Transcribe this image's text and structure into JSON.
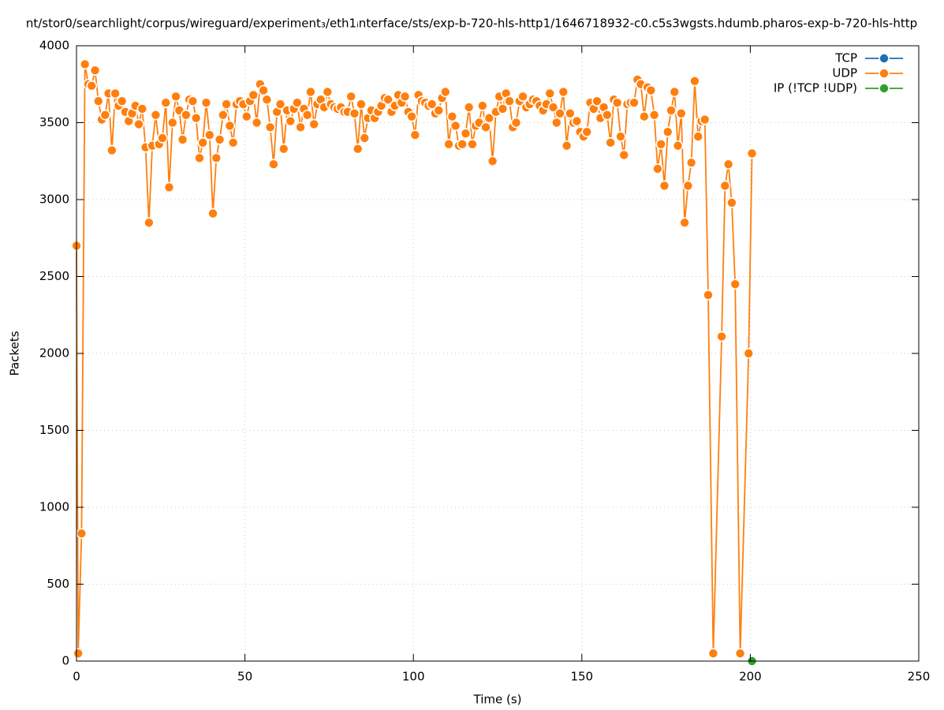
{
  "chart_data": {
    "type": "line",
    "title": "nt/stor0/searchlight/corpus/wireguard/experiment₃/eth1ᵢnterface/sts/exp-b-720-hls-http1/1646718932-c0.c5s3wgsts.hdumb.pharos-exp-b-720-hls-http",
    "xlabel": "Time (s)",
    "ylabel": "Packets",
    "xlim": [
      0,
      250
    ],
    "ylim": [
      0,
      4000
    ],
    "xticks": [
      0,
      50,
      100,
      150,
      200,
      250
    ],
    "yticks": [
      0,
      500,
      1000,
      1500,
      2000,
      2500,
      3000,
      3500,
      4000
    ],
    "grid": true,
    "legend": "upper right",
    "series": [
      {
        "name": "TCP",
        "color": "#1f6fb4",
        "x": [],
        "values": []
      },
      {
        "name": "UDP",
        "color": "#ff7f0e",
        "x": [
          0,
          0.5,
          1.5,
          2.5,
          3.5,
          4.5,
          5.5,
          6.5,
          7.5,
          8.5,
          9.5,
          10.5,
          11.5,
          12.5,
          13.5,
          14.5,
          15.5,
          16.5,
          17.5,
          18.5,
          19.5,
          20.5,
          21.5,
          22.5,
          23.5,
          24.5,
          25.5,
          26.5,
          27.5,
          28.5,
          29.5,
          30.5,
          31.5,
          32.5,
          33.5,
          34.5,
          35.5,
          36.5,
          37.5,
          38.5,
          39.5,
          40.5,
          41.5,
          42.5,
          43.5,
          44.5,
          45.5,
          46.5,
          47.5,
          48.5,
          49.5,
          50.5,
          51.5,
          52.5,
          53.5,
          54.5,
          55.5,
          56.5,
          57.5,
          58.5,
          59.5,
          60.5,
          61.5,
          62.5,
          63.5,
          64.5,
          65.5,
          66.5,
          67.5,
          68.5,
          69.5,
          70.5,
          71.5,
          72.5,
          73.5,
          74.5,
          75.5,
          76.5,
          77.5,
          78.5,
          79.5,
          80.5,
          81.5,
          82.5,
          83.5,
          84.5,
          85.5,
          86.5,
          87.5,
          88.5,
          89.5,
          90.5,
          91.5,
          92.5,
          93.5,
          94.5,
          95.5,
          96.5,
          97.5,
          98.5,
          99.5,
          100.5,
          101.5,
          102.5,
          103.5,
          104.5,
          105.5,
          106.5,
          107.5,
          108.5,
          109.5,
          110.5,
          111.5,
          112.5,
          113.5,
          114.5,
          115.5,
          116.5,
          117.5,
          118.5,
          119.5,
          120.5,
          121.5,
          122.5,
          123.5,
          124.5,
          125.5,
          126.5,
          127.5,
          128.5,
          129.5,
          130.5,
          131.5,
          132.5,
          133.5,
          134.5,
          135.5,
          136.5,
          137.5,
          138.5,
          139.5,
          140.5,
          141.5,
          142.5,
          143.5,
          144.5,
          145.5,
          146.5,
          147.5,
          148.5,
          149.5,
          150.5,
          151.5,
          152.5,
          153.5,
          154.5,
          155.5,
          156.5,
          157.5,
          158.5,
          159.5,
          160.5,
          161.5,
          162.5,
          163.5,
          164.5,
          165.5,
          166.5,
          167.5,
          168.5,
          169.5,
          170.5,
          171.5,
          172.5,
          173.5,
          174.5,
          175.5,
          176.5,
          177.5,
          178.5,
          179.5,
          180.5,
          181.5,
          182.5,
          183.5,
          184.5,
          185.5,
          186.5,
          187.5,
          189,
          191.5,
          192.5,
          193.5,
          194.5,
          195.5,
          197,
          199.5,
          200.5
        ],
        "values": [
          2700,
          50,
          830,
          3880,
          3750,
          3740,
          3840,
          3640,
          3520,
          3550,
          3690,
          3320,
          3690,
          3610,
          3640,
          3570,
          3510,
          3560,
          3610,
          3490,
          3590,
          3340,
          2850,
          3350,
          3550,
          3360,
          3400,
          3630,
          3080,
          3500,
          3670,
          3580,
          3390,
          3550,
          3650,
          3640,
          3530,
          3270,
          3370,
          3630,
          3420,
          2910,
          3270,
          3390,
          3550,
          3620,
          3480,
          3370,
          3620,
          3640,
          3620,
          3540,
          3640,
          3680,
          3500,
          3750,
          3710,
          3650,
          3470,
          3230,
          3570,
          3620,
          3330,
          3580,
          3510,
          3590,
          3630,
          3470,
          3590,
          3550,
          3700,
          3490,
          3620,
          3650,
          3600,
          3700,
          3620,
          3600,
          3590,
          3600,
          3570,
          3570,
          3670,
          3560,
          3330,
          3620,
          3400,
          3530,
          3580,
          3530,
          3570,
          3610,
          3660,
          3650,
          3570,
          3610,
          3680,
          3630,
          3670,
          3570,
          3540,
          3420,
          3680,
          3640,
          3630,
          3610,
          3620,
          3560,
          3580,
          3660,
          3700,
          3360,
          3540,
          3480,
          3350,
          3360,
          3430,
          3600,
          3360,
          3480,
          3500,
          3610,
          3470,
          3530,
          3250,
          3570,
          3670,
          3590,
          3690,
          3640,
          3470,
          3500,
          3640,
          3670,
          3600,
          3620,
          3650,
          3640,
          3610,
          3580,
          3620,
          3690,
          3600,
          3500,
          3560,
          3700,
          3350,
          3560,
          3500,
          3510,
          3440,
          3410,
          3440,
          3630,
          3590,
          3640,
          3530,
          3600,
          3550,
          3370,
          3650,
          3630,
          3410,
          3290,
          3620,
          3630,
          3630,
          3780,
          3750,
          3540,
          3730,
          3710,
          3550,
          3200,
          3360,
          3090,
          3440,
          3580,
          3700,
          3350,
          3560,
          2850,
          3090,
          3240,
          3770,
          3410,
          3510,
          3520,
          2380,
          50,
          2110,
          3090,
          3230,
          2980,
          2450,
          50,
          2000,
          3300
        ]
      },
      {
        "name": "IP (!TCP  !UDP)",
        "color": "#2ca02c",
        "x": [
          200.5
        ],
        "values": [
          0
        ]
      }
    ]
  }
}
